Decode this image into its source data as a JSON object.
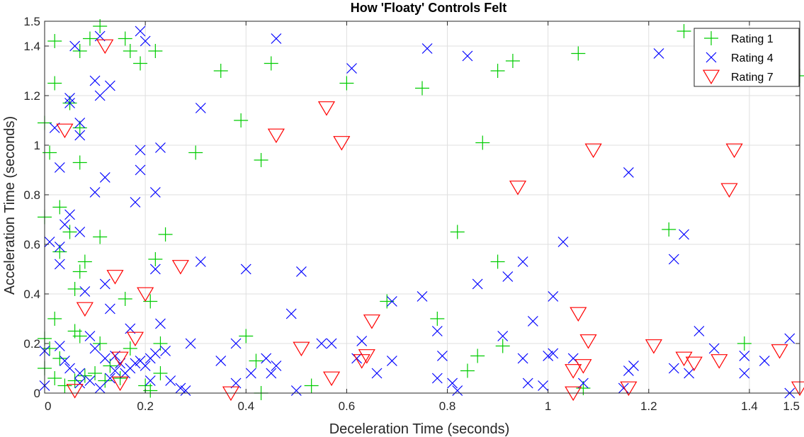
{
  "chart_data": {
    "type": "scatter",
    "title": "How 'Floaty' Controls Felt",
    "xlabel": "Deceleration Time (seconds)",
    "ylabel": "Acceleration Time (seconds)",
    "xlim": [
      0,
      1.5
    ],
    "ylim": [
      0,
      1.5
    ],
    "xticks": [
      0,
      0.2,
      0.4,
      0.6,
      0.8,
      1,
      1.2,
      1.4,
      1.5
    ],
    "xtick_labels": [
      "0",
      "0.2",
      "0.4",
      "0.6",
      "0.8",
      "1",
      "1.2",
      "1.4",
      "1.5"
    ],
    "yticks": [
      0,
      0.2,
      0.4,
      0.6,
      0.8,
      1,
      1.2,
      1.4,
      1.5
    ],
    "ytick_labels": [
      "0",
      "0.2",
      "0.4",
      "0.6",
      "0.8",
      "1",
      "1.2",
      "1.4",
      "1.5"
    ],
    "grid": true,
    "legend_position": "top-right",
    "series": [
      {
        "name": "Rating 1",
        "marker": "plus",
        "color": "#00cc00",
        "points": [
          [
            0.11,
            1.48
          ],
          [
            0.02,
            1.42
          ],
          [
            0.09,
            1.43
          ],
          [
            0.16,
            1.43
          ],
          [
            0.07,
            1.38
          ],
          [
            0.17,
            1.38
          ],
          [
            0.22,
            1.38
          ],
          [
            0.19,
            1.33
          ],
          [
            0.35,
            1.3
          ],
          [
            0.45,
            1.33
          ],
          [
            0.6,
            1.25
          ],
          [
            0.75,
            1.23
          ],
          [
            0.9,
            1.3
          ],
          [
            0.93,
            1.34
          ],
          [
            1.06,
            1.37
          ],
          [
            1.27,
            1.46
          ],
          [
            1.5,
            1.28
          ],
          [
            0.02,
            1.25
          ],
          [
            0.05,
            1.17
          ],
          [
            0.0,
            1.09
          ],
          [
            0.07,
            1.07
          ],
          [
            0.39,
            1.1
          ],
          [
            0.01,
            0.97
          ],
          [
            0.07,
            0.93
          ],
          [
            0.3,
            0.97
          ],
          [
            0.43,
            0.94
          ],
          [
            0.87,
            1.01
          ],
          [
            0.0,
            0.71
          ],
          [
            0.03,
            0.75
          ],
          [
            0.05,
            0.65
          ],
          [
            0.11,
            0.63
          ],
          [
            0.24,
            0.64
          ],
          [
            0.82,
            0.65
          ],
          [
            1.24,
            0.66
          ],
          [
            0.03,
            0.57
          ],
          [
            0.07,
            0.49
          ],
          [
            0.08,
            0.53
          ],
          [
            0.22,
            0.54
          ],
          [
            0.9,
            0.53
          ],
          [
            0.06,
            0.42
          ],
          [
            0.16,
            0.38
          ],
          [
            0.21,
            0.37
          ],
          [
            0.68,
            0.37
          ],
          [
            0.78,
            0.3
          ],
          [
            0.02,
            0.3
          ],
          [
            0.0,
            0.22
          ],
          [
            0.06,
            0.25
          ],
          [
            0.4,
            0.23
          ],
          [
            0.42,
            0.13
          ],
          [
            0.07,
            0.23
          ],
          [
            0.11,
            0.2
          ],
          [
            0.17,
            0.18
          ],
          [
            0.23,
            0.2
          ],
          [
            0.01,
            0.18
          ],
          [
            0.03,
            0.14
          ],
          [
            0.0,
            0.1
          ],
          [
            0.02,
            0.06
          ],
          [
            0.04,
            0.03
          ],
          [
            0.06,
            0.05
          ],
          [
            0.08,
            0.07
          ],
          [
            0.1,
            0.08
          ],
          [
            0.12,
            0.05
          ],
          [
            0.13,
            0.11
          ],
          [
            0.15,
            0.06
          ],
          [
            0.2,
            0.03
          ],
          [
            0.23,
            0.08
          ],
          [
            0.43,
            0.0
          ],
          [
            0.53,
            0.03
          ],
          [
            0.86,
            0.15
          ],
          [
            0.91,
            0.19
          ],
          [
            0.84,
            0.09
          ],
          [
            1.07,
            0.02
          ],
          [
            1.39,
            0.2
          ],
          [
            0.21,
            0.01
          ]
        ]
      },
      {
        "name": "Rating 4",
        "marker": "x",
        "color": "#0000ff",
        "points": [
          [
            0.11,
            1.44
          ],
          [
            0.19,
            1.46
          ],
          [
            0.06,
            1.4
          ],
          [
            0.2,
            1.42
          ],
          [
            0.46,
            1.43
          ],
          [
            0.76,
            1.39
          ],
          [
            0.84,
            1.36
          ],
          [
            1.22,
            1.37
          ],
          [
            0.61,
            1.31
          ],
          [
            0.1,
            1.26
          ],
          [
            0.13,
            1.24
          ],
          [
            0.05,
            1.19
          ],
          [
            0.11,
            1.2
          ],
          [
            0.05,
            1.17
          ],
          [
            0.31,
            1.15
          ],
          [
            0.07,
            1.09
          ],
          [
            0.02,
            1.07
          ],
          [
            0.07,
            1.04
          ],
          [
            0.19,
            0.98
          ],
          [
            0.23,
            0.99
          ],
          [
            0.03,
            0.91
          ],
          [
            0.19,
            0.9
          ],
          [
            0.12,
            0.87
          ],
          [
            0.1,
            0.81
          ],
          [
            0.22,
            0.81
          ],
          [
            1.16,
            0.89
          ],
          [
            0.18,
            0.77
          ],
          [
            0.05,
            0.72
          ],
          [
            0.04,
            0.68
          ],
          [
            0.07,
            0.65
          ],
          [
            0.01,
            0.61
          ],
          [
            0.03,
            0.59
          ],
          [
            0.03,
            0.52
          ],
          [
            1.03,
            0.61
          ],
          [
            1.27,
            0.64
          ],
          [
            1.25,
            0.54
          ],
          [
            0.22,
            0.5
          ],
          [
            0.31,
            0.53
          ],
          [
            0.4,
            0.5
          ],
          [
            0.51,
            0.49
          ],
          [
            0.95,
            0.53
          ],
          [
            0.92,
            0.47
          ],
          [
            0.86,
            0.44
          ],
          [
            0.08,
            0.41
          ],
          [
            0.12,
            0.44
          ],
          [
            0.13,
            0.34
          ],
          [
            0.49,
            0.32
          ],
          [
            0.69,
            0.37
          ],
          [
            0.75,
            0.39
          ],
          [
            1.01,
            0.39
          ],
          [
            0.97,
            0.29
          ],
          [
            0.78,
            0.25
          ],
          [
            0.63,
            0.21
          ],
          [
            1.3,
            0.25
          ],
          [
            0.09,
            0.23
          ],
          [
            0.1,
            0.18
          ],
          [
            0.03,
            0.19
          ],
          [
            0.0,
            0.17
          ],
          [
            0.04,
            0.13
          ],
          [
            0.05,
            0.1
          ],
          [
            0.07,
            0.08
          ],
          [
            0.09,
            0.05
          ],
          [
            0.11,
            0.02
          ],
          [
            0.13,
            0.06
          ],
          [
            0.14,
            0.09
          ],
          [
            0.15,
            0.12
          ],
          [
            0.16,
            0.08
          ],
          [
            0.17,
            0.1
          ],
          [
            0.18,
            0.12
          ],
          [
            0.19,
            0.13
          ],
          [
            0.2,
            0.11
          ],
          [
            0.21,
            0.14
          ],
          [
            0.22,
            0.16
          ],
          [
            0.23,
            0.28
          ],
          [
            0.24,
            0.17
          ],
          [
            0.25,
            0.05
          ],
          [
            0.27,
            0.02
          ],
          [
            0.28,
            0.01
          ],
          [
            0.29,
            0.2
          ],
          [
            0.35,
            0.13
          ],
          [
            0.38,
            0.2
          ],
          [
            0.38,
            0.04
          ],
          [
            0.41,
            0.08
          ],
          [
            0.44,
            0.14
          ],
          [
            0.45,
            0.08
          ],
          [
            0.46,
            0.11
          ],
          [
            0.5,
            0.01
          ],
          [
            0.55,
            0.2
          ],
          [
            0.57,
            0.2
          ],
          [
            0.62,
            0.14
          ],
          [
            0.66,
            0.08
          ],
          [
            0.69,
            0.13
          ],
          [
            0.79,
            0.15
          ],
          [
            0.78,
            0.06
          ],
          [
            0.81,
            0.04
          ],
          [
            0.82,
            0.01
          ],
          [
            0.91,
            0.23
          ],
          [
            0.95,
            0.14
          ],
          [
            0.96,
            0.04
          ],
          [
            0.99,
            0.03
          ],
          [
            1.0,
            0.15
          ],
          [
            1.01,
            0.16
          ],
          [
            1.05,
            0.14
          ],
          [
            1.07,
            0.04
          ],
          [
            1.16,
            0.09
          ],
          [
            1.17,
            0.11
          ],
          [
            1.15,
            0.02
          ],
          [
            1.25,
            0.1
          ],
          [
            1.28,
            0.08
          ],
          [
            1.33,
            0.18
          ],
          [
            1.39,
            0.15
          ],
          [
            1.39,
            0.08
          ],
          [
            1.43,
            0.13
          ],
          [
            1.48,
            0.22
          ],
          [
            1.48,
            0.0
          ],
          [
            0.0,
            0.03
          ],
          [
            0.07,
            0.04
          ],
          [
            0.14,
            0.15
          ],
          [
            0.17,
            0.26
          ],
          [
            0.21,
            0.05
          ],
          [
            0.12,
            0.14
          ]
        ]
      },
      {
        "name": "Rating 7",
        "marker": "triangle-down",
        "color": "#ff0000",
        "points": [
          [
            0.12,
            1.4
          ],
          [
            0.56,
            1.15
          ],
          [
            0.04,
            1.06
          ],
          [
            0.46,
            1.04
          ],
          [
            0.59,
            1.01
          ],
          [
            1.09,
            0.98
          ],
          [
            1.37,
            0.98
          ],
          [
            0.94,
            0.83
          ],
          [
            1.36,
            0.82
          ],
          [
            0.27,
            0.51
          ],
          [
            0.14,
            0.47
          ],
          [
            0.2,
            0.4
          ],
          [
            0.08,
            0.34
          ],
          [
            0.18,
            0.22
          ],
          [
            0.65,
            0.29
          ],
          [
            1.06,
            0.32
          ],
          [
            1.08,
            0.21
          ],
          [
            0.51,
            0.18
          ],
          [
            0.64,
            0.15
          ],
          [
            0.63,
            0.13
          ],
          [
            1.21,
            0.19
          ],
          [
            1.27,
            0.14
          ],
          [
            1.29,
            0.12
          ],
          [
            1.34,
            0.13
          ],
          [
            1.46,
            0.17
          ],
          [
            0.15,
            0.14
          ],
          [
            0.15,
            0.04
          ],
          [
            1.07,
            0.11
          ],
          [
            1.05,
            0.09
          ],
          [
            0.06,
            0.01
          ],
          [
            0.37,
            0.0
          ],
          [
            0.57,
            0.06
          ],
          [
            1.05,
            0.0
          ],
          [
            1.16,
            0.02
          ],
          [
            1.5,
            0.02
          ]
        ]
      }
    ]
  }
}
